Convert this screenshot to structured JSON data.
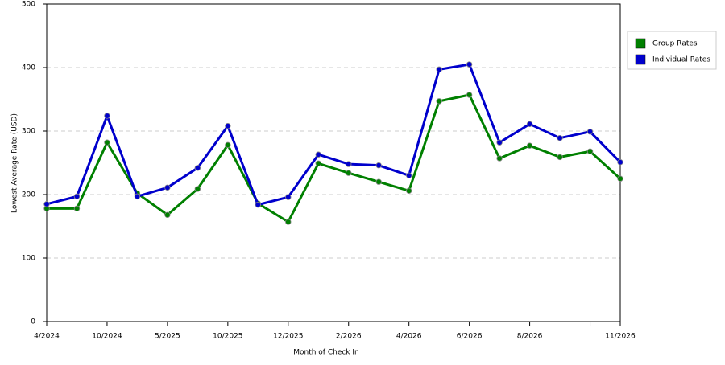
{
  "chart_data": {
    "type": "line",
    "x_label": "Month of Check In",
    "y_label": "Lowest Average Rate (USD)",
    "categories": [
      "4/2024",
      null,
      "10/2024",
      null,
      "5/2025",
      null,
      "10/2025",
      null,
      "12/2025",
      null,
      "2/2026",
      null,
      "4/2026",
      null,
      "6/2026",
      null,
      "8/2026",
      null,
      null,
      "11/2026"
    ],
    "series": [
      {
        "name": "Group Rates",
        "color": "#008000",
        "values": [
          178,
          178,
          282,
          202,
          168,
          209,
          278,
          186,
          157,
          249,
          234,
          220,
          206,
          347,
          357,
          257,
          277,
          259,
          268,
          225
        ]
      },
      {
        "name": "Individual Rates",
        "color": "#0000cc",
        "values": [
          185,
          197,
          324,
          197,
          211,
          242,
          308,
          184,
          196,
          263,
          248,
          246,
          230,
          397,
          405,
          282,
          311,
          289,
          299,
          251
        ]
      }
    ],
    "ylim": [
      0,
      500
    ],
    "yticks": [
      0,
      100,
      200,
      300,
      400,
      500
    ],
    "grid": true,
    "legend": "right"
  }
}
